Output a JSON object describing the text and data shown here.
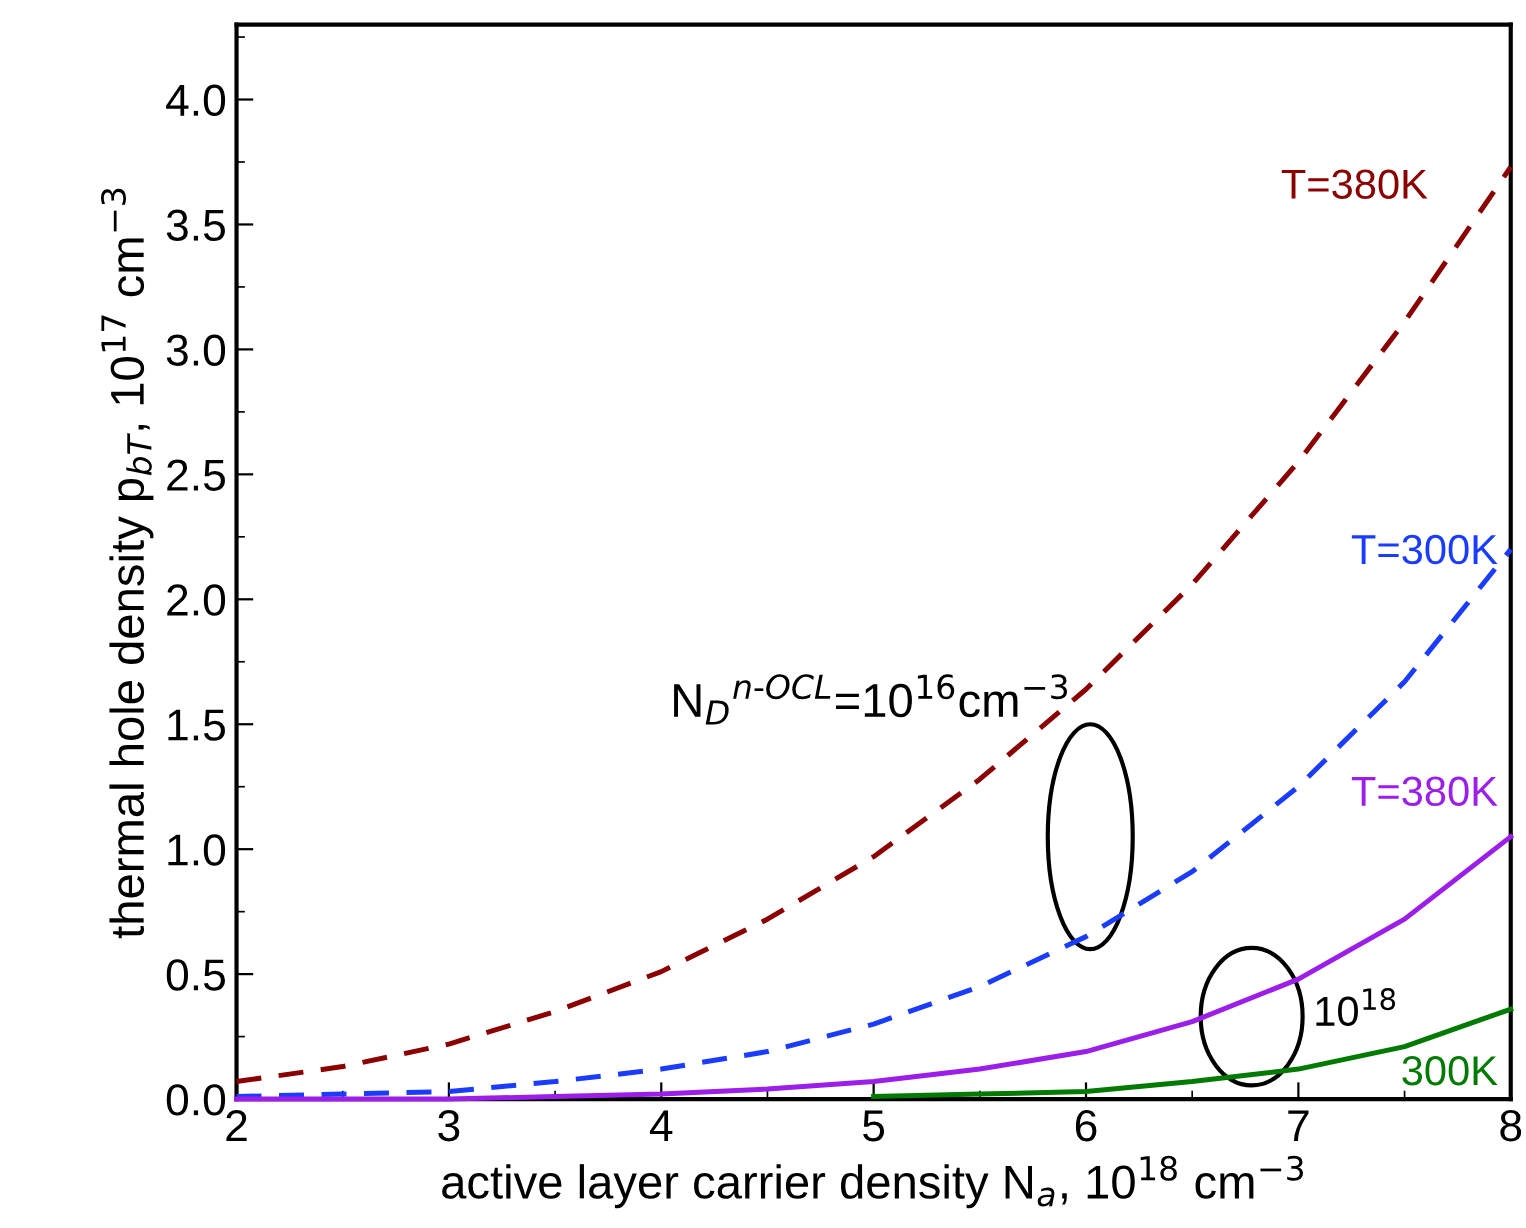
{
  "chart_data": {
    "type": "line",
    "xlabel": "active layer carrier density N$_{a}$, 10$^{18}$ cm$^{−3}$",
    "ylabel": "thermal hole density p$_{bT}$, 10$^{17}$ cm$^{−3}$",
    "x": [
      2,
      2.5,
      3,
      3.5,
      4,
      4.5,
      5,
      5.5,
      6,
      6.5,
      7,
      7.5,
      8
    ],
    "series": [
      {
        "name": "T=380K",
        "color": "#8b0000",
        "line_style": "dashed",
        "values": [
          0.07,
          0.13,
          0.22,
          0.35,
          0.51,
          0.72,
          0.97,
          1.28,
          1.64,
          2.06,
          2.55,
          3.11,
          3.73
        ]
      },
      {
        "name": "T=300K",
        "color": "#1a3cff",
        "line_style": "dashed",
        "values": [
          0.01,
          0.02,
          0.03,
          0.07,
          0.12,
          0.19,
          0.3,
          0.45,
          0.65,
          0.91,
          1.25,
          1.67,
          2.2
        ]
      },
      {
        "name": "T=380K",
        "color": "#9b1fe8",
        "line_style": "solid",
        "values": [
          0,
          0,
          0,
          0.01,
          0.02,
          0.04,
          0.07,
          0.12,
          0.19,
          0.31,
          0.48,
          0.72,
          1.05
        ]
      },
      {
        "name": "300K",
        "color": "#007a00",
        "line_style": "solid",
        "values": [
          null,
          null,
          null,
          null,
          null,
          null,
          0.01,
          0.02,
          0.03,
          0.07,
          0.12,
          0.21,
          0.36
        ]
      }
    ],
    "annotations": [
      "N$_{D}$$^{n‐OCL}$=10$^{16}$cm$^{−3}$",
      "10$^{18}$"
    ],
    "xlim": [
      2,
      8
    ],
    "ylim": [
      0,
      4.3
    ],
    "xticks": [
      2,
      3,
      4,
      5,
      6,
      7,
      8
    ],
    "yticks": [
      {
        "value": 0,
        "label": "0.0"
      },
      {
        "value": 0.5,
        "label": "0.5"
      },
      {
        "value": 1,
        "label": "1.0"
      },
      {
        "value": 1.5,
        "label": "1.5"
      },
      {
        "value": 2,
        "label": "2.0"
      },
      {
        "value": 2.5,
        "label": "2.5"
      },
      {
        "value": 3,
        "label": "3.0"
      },
      {
        "value": 3.5,
        "label": "3.5"
      },
      {
        "value": 4,
        "label": "4.0"
      }
    ],
    "grid": false,
    "marker": "none"
  }
}
